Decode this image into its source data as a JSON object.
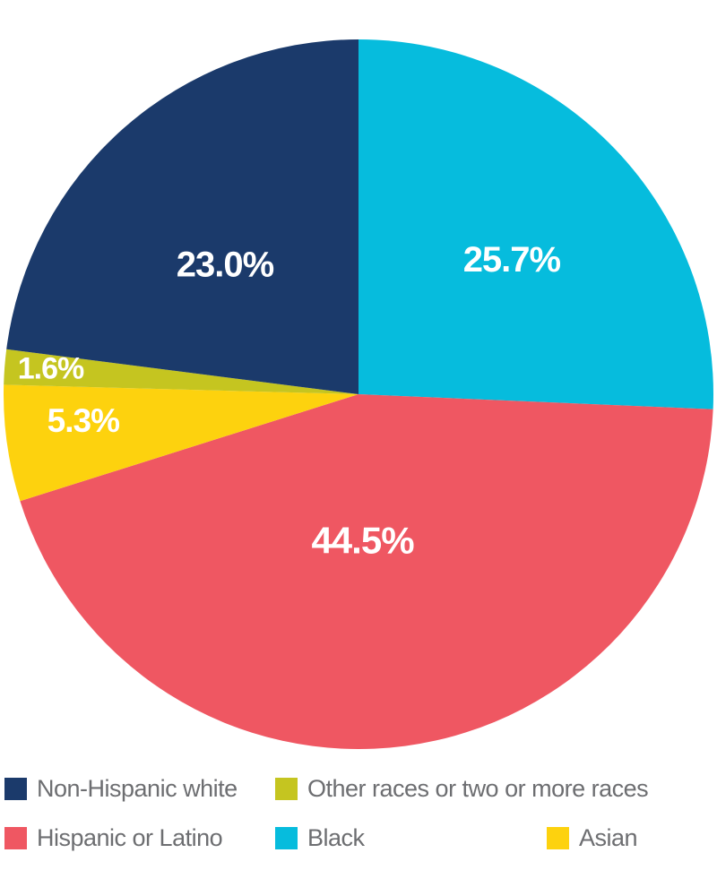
{
  "chart_data": {
    "type": "pie",
    "title": "",
    "start_angle_deg": 0,
    "direction": "clockwise",
    "slices": [
      {
        "name": "Black",
        "value": 25.7,
        "label": "25.7%",
        "color": "#06bcdd"
      },
      {
        "name": "Hispanic or Latino",
        "value": 44.5,
        "label": "44.5%",
        "color": "#ef5762"
      },
      {
        "name": "Asian",
        "value": 5.3,
        "label": "5.3%",
        "color": "#fdd20e"
      },
      {
        "name": "Other races or two or more races",
        "value": 1.6,
        "label": "1.6%",
        "color": "#c5c520"
      },
      {
        "name": "Non-Hispanic white",
        "value": 23.0,
        "label": "23.0%",
        "color": "#1b3a6b"
      }
    ],
    "legend": {
      "placement": "bottom",
      "items": [
        {
          "name": "Non-Hispanic white",
          "color": "#1b3a6b"
        },
        {
          "name": "Other races or two or more races",
          "color": "#c5c520"
        },
        {
          "name": "Hispanic or Latino",
          "color": "#ef5762"
        },
        {
          "name": "Black",
          "color": "#06bcdd"
        },
        {
          "name": "Asian",
          "color": "#fdd20e"
        }
      ]
    }
  }
}
